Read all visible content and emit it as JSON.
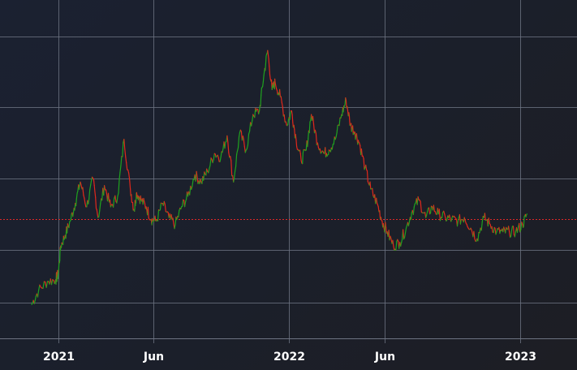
{
  "chart_data": {
    "type": "line",
    "grid": true,
    "x_tick_labels": [
      "2021",
      "Jun",
      "2022",
      "Jun",
      "2023"
    ],
    "x_ticks": [
      "2021-01-01",
      "2021-06-01",
      "2022-01-01",
      "2022-06-01",
      "2023-01-01"
    ],
    "xlim": [
      "2020-10-01",
      "2023-04-01"
    ],
    "ylim": [
      0,
      100
    ],
    "y_gridlines": [
      10,
      25,
      45,
      65,
      85
    ],
    "reference_line": {
      "y": 33.5,
      "style": "dotted",
      "color": "#e02828"
    },
    "colors": {
      "up": "#1fa21f",
      "down": "#e0281c",
      "grid": "#6d7382",
      "background": "#1b2030"
    },
    "series": [
      {
        "x": [
          "2020-11-20",
          "2020-12-01",
          "2020-12-15",
          "2020-12-28",
          "2021-01-01",
          "2021-01-05",
          "2021-01-12",
          "2021-01-20",
          "2021-01-28",
          "2021-02-05",
          "2021-02-15",
          "2021-02-25",
          "2021-03-05",
          "2021-03-15",
          "2021-03-25",
          "2021-04-05",
          "2021-04-15",
          "2021-04-25",
          "2021-05-01",
          "2021-05-05",
          "2021-05-12",
          "2021-05-20",
          "2021-05-28",
          "2021-06-05",
          "2021-06-15",
          "2021-06-25",
          "2021-07-05",
          "2021-07-15",
          "2021-07-25",
          "2021-08-05",
          "2021-08-15",
          "2021-08-25",
          "2021-09-05",
          "2021-09-15",
          "2021-09-25",
          "2021-10-05",
          "2021-10-15",
          "2021-10-25",
          "2021-11-05",
          "2021-11-15",
          "2021-11-22",
          "2021-11-28",
          "2021-12-05",
          "2021-12-10",
          "2021-12-18",
          "2021-12-28",
          "2022-01-05",
          "2022-01-12",
          "2022-01-20",
          "2022-01-28",
          "2022-02-05",
          "2022-02-15",
          "2022-02-25",
          "2022-03-05",
          "2022-03-15",
          "2022-03-25",
          "2022-04-01",
          "2022-04-08",
          "2022-04-15",
          "2022-04-22",
          "2022-05-01",
          "2022-05-10",
          "2022-05-20",
          "2022-05-28",
          "2022-06-05",
          "2022-06-15",
          "2022-06-25",
          "2022-07-05",
          "2022-07-15",
          "2022-07-25",
          "2022-08-05",
          "2022-08-15",
          "2022-08-25",
          "2022-09-05",
          "2022-09-15",
          "2022-09-25",
          "2022-10-05",
          "2022-10-15",
          "2022-10-25",
          "2022-11-05",
          "2022-11-15",
          "2022-11-25",
          "2022-12-05",
          "2022-12-15",
          "2022-12-25",
          "2023-01-05",
          "2023-01-12"
        ],
        "values": [
          9.5,
          13.5,
          16,
          16.5,
          18,
          26,
          29,
          33,
          38,
          44,
          37,
          45,
          34,
          43,
          37,
          40,
          56,
          42,
          36,
          41,
          39,
          37,
          33.5,
          33,
          38,
          34,
          32,
          37,
          40,
          46,
          44,
          47,
          52,
          51,
          57,
          44,
          58,
          53,
          63,
          64,
          74,
          81,
          70,
          72,
          68,
          60,
          64,
          56,
          50,
          53,
          63,
          55,
          52,
          53,
          56,
          63,
          67,
          60,
          58,
          55,
          48,
          42,
          38,
          33,
          30,
          26,
          27,
          31,
          36,
          39,
          34,
          37,
          35,
          34,
          33.5,
          33,
          34,
          31,
          28,
          34,
          32,
          30,
          30,
          30,
          30,
          32,
          35
        ]
      }
    ]
  }
}
